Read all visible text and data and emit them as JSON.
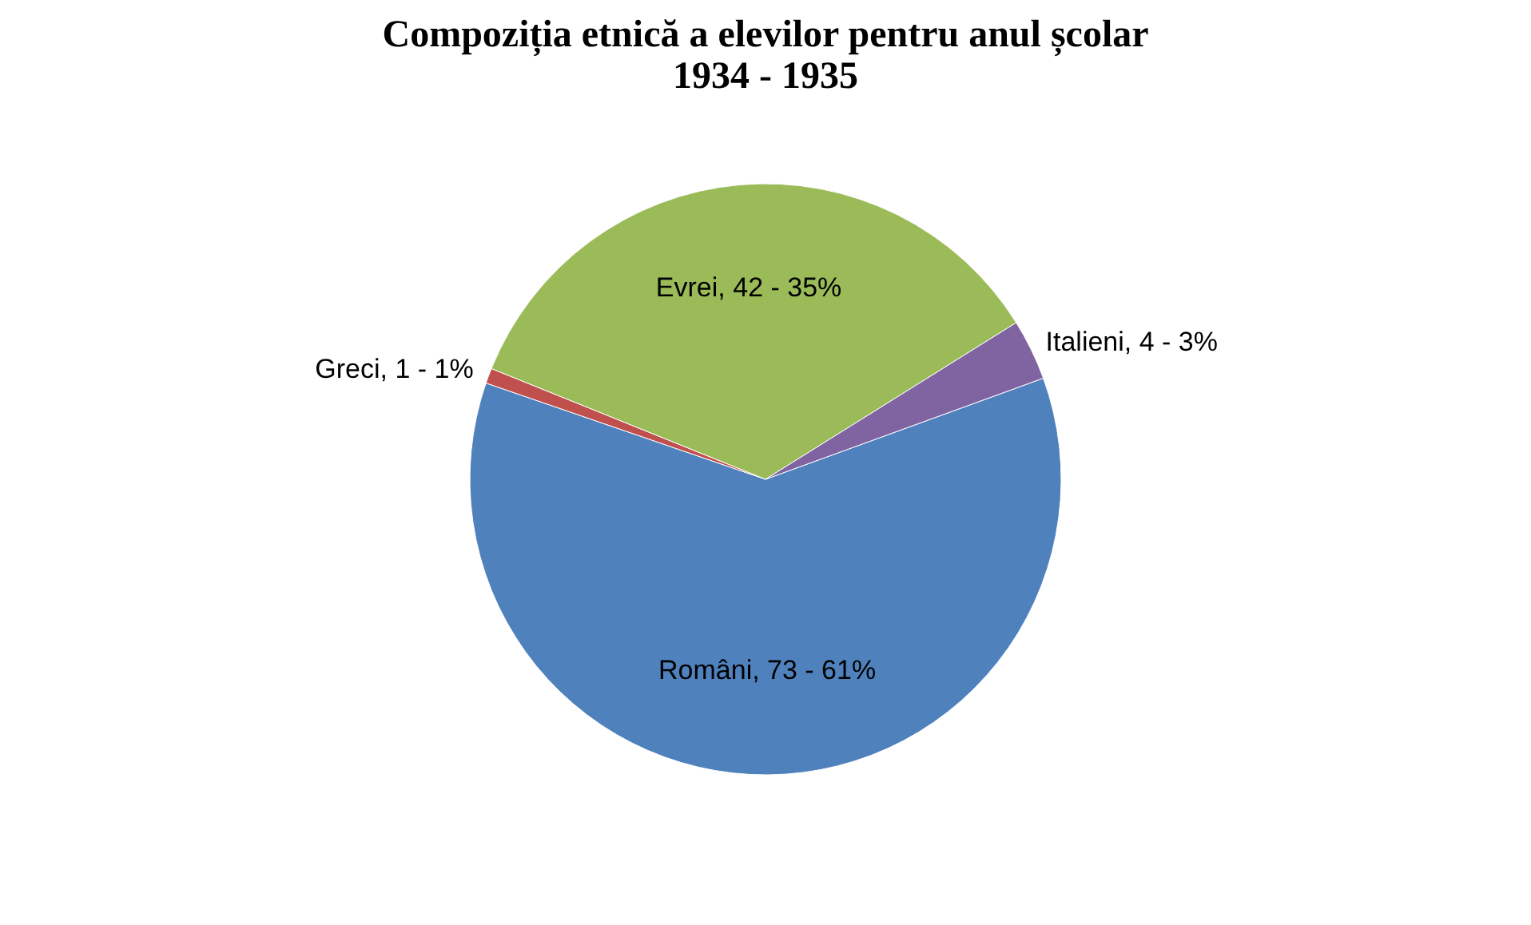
{
  "chart_data": {
    "type": "pie",
    "title": "Compoziția etnică a elevilor pentru anul școlar 1934 - 1935",
    "categories": [
      "Români",
      "Greci",
      "Evrei",
      "Italieni"
    ],
    "values": [
      73,
      1,
      42,
      4
    ],
    "value_labels": [
      "73 - 61%",
      "1 - 1%",
      "42 - 35%",
      "4 - 3%"
    ],
    "colors": [
      "#4f81bd",
      "#c0504d",
      "#9bbb59",
      "#8064a2"
    ],
    "legend": false
  }
}
